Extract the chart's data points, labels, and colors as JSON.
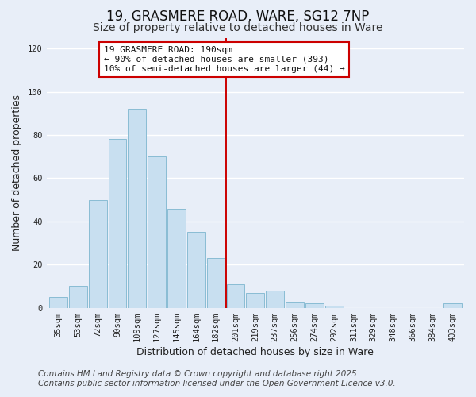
{
  "title": "19, GRASMERE ROAD, WARE, SG12 7NP",
  "subtitle": "Size of property relative to detached houses in Ware",
  "xlabel": "Distribution of detached houses by size in Ware",
  "ylabel": "Number of detached properties",
  "bar_labels": [
    "35sqm",
    "53sqm",
    "72sqm",
    "90sqm",
    "109sqm",
    "127sqm",
    "145sqm",
    "164sqm",
    "182sqm",
    "201sqm",
    "219sqm",
    "237sqm",
    "256sqm",
    "274sqm",
    "292sqm",
    "311sqm",
    "329sqm",
    "348sqm",
    "366sqm",
    "384sqm",
    "403sqm"
  ],
  "bar_values": [
    5,
    10,
    50,
    78,
    92,
    70,
    46,
    35,
    23,
    11,
    7,
    8,
    3,
    2,
    1,
    0,
    0,
    0,
    0,
    0,
    2
  ],
  "bar_color": "#c8dff0",
  "bar_edge_color": "#89bcd4",
  "ylim": [
    0,
    125
  ],
  "yticks": [
    0,
    20,
    40,
    60,
    80,
    100,
    120
  ],
  "vline_x": 8.5,
  "vline_color": "#cc0000",
  "annotation_title": "19 GRASMERE ROAD: 190sqm",
  "annotation_line1": "← 90% of detached houses are smaller (393)",
  "annotation_line2": "10% of semi-detached houses are larger (44) →",
  "annotation_box_color": "#ffffff",
  "annotation_box_edge": "#cc0000",
  "footer_line1": "Contains HM Land Registry data © Crown copyright and database right 2025.",
  "footer_line2": "Contains public sector information licensed under the Open Government Licence v3.0.",
  "background_color": "#e8eef8",
  "plot_bg_color": "#e8eef8",
  "grid_color": "#ffffff",
  "title_fontsize": 12,
  "subtitle_fontsize": 10,
  "axis_label_fontsize": 9,
  "tick_fontsize": 7.5,
  "annotation_fontsize": 8,
  "footer_fontsize": 7.5
}
